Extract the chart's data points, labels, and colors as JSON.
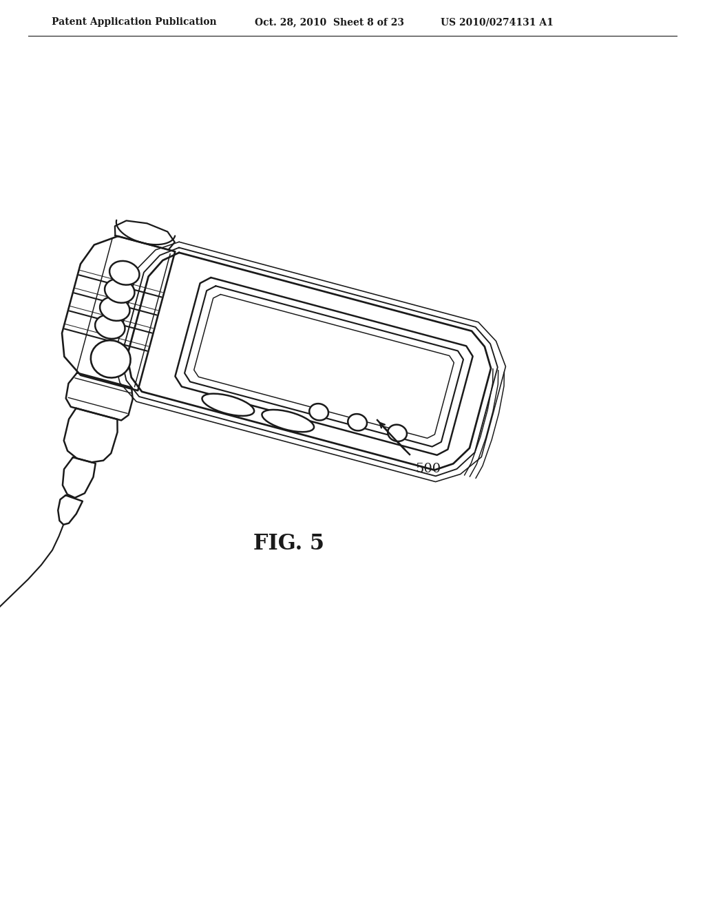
{
  "background_color": "#ffffff",
  "header_left": "Patent Application Publication",
  "header_mid": "Oct. 28, 2010  Sheet 8 of 23",
  "header_right": "US 2010/0274131 A1",
  "fig_label": "FIG. 5",
  "ref_number": "500",
  "line_color": "#1a1a1a",
  "line_width": 1.8,
  "tilt_deg": 15
}
